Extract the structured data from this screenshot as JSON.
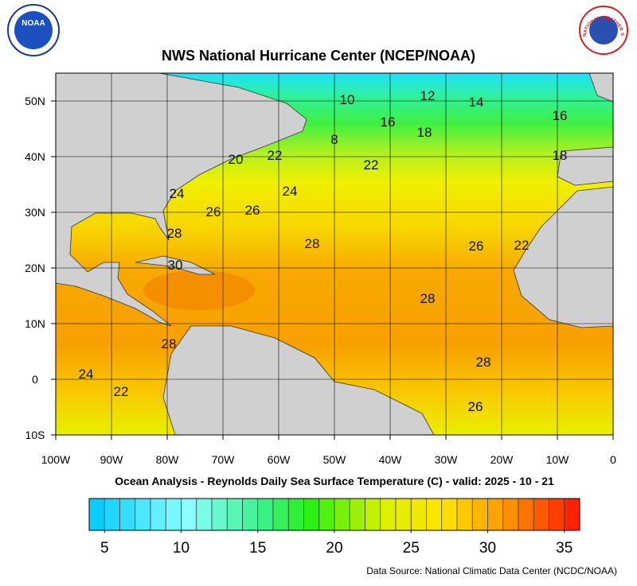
{
  "title": "NWS National Hurricane Center (NCEP/NOAA)",
  "subtitle": "Ocean Analysis - Reynolds Daily Sea Surface Temperature (C) - valid: 2025 - 10 - 21",
  "source": "Data Source: National Climatic Data Center (NCDC/NOAA)",
  "noaa_logo": "NOAA",
  "nws_logo": "NATIONAL WEATHER SERVICE",
  "map": {
    "xlim": [
      -100,
      0
    ],
    "ylim": [
      -10,
      55
    ],
    "xticks": [
      {
        "value": -100,
        "label": "100W"
      },
      {
        "value": -90,
        "label": "90W"
      },
      {
        "value": -80,
        "label": "80W"
      },
      {
        "value": -70,
        "label": "70W"
      },
      {
        "value": -60,
        "label": "60W"
      },
      {
        "value": -50,
        "label": "50W"
      },
      {
        "value": -40,
        "label": "40W"
      },
      {
        "value": -30,
        "label": "30W"
      },
      {
        "value": -20,
        "label": "20W"
      },
      {
        "value": -10,
        "label": "10W"
      },
      0
    ],
    "yticks": [
      {
        "value": -10,
        "label": "10S"
      },
      0,
      {
        "value": 10,
        "label": "10N"
      },
      {
        "value": 20,
        "label": "20N"
      },
      {
        "value": 30,
        "label": "30N"
      },
      {
        "value": 40,
        "label": "40N"
      },
      {
        "value": 50,
        "label": "50N"
      }
    ],
    "contour_labels": [
      "12",
      "14",
      "10",
      "16",
      "16",
      "18",
      "18",
      "8",
      "20",
      "22",
      "22",
      "24",
      "24",
      "26",
      "26",
      "28",
      "28",
      "26",
      "22",
      "30",
      "28",
      "28",
      "28",
      "24",
      "22",
      "26"
    ]
  },
  "colorbar": {
    "range": [
      4,
      36
    ],
    "ticks": [
      5,
      10,
      15,
      20,
      25,
      30,
      35
    ]
  }
}
